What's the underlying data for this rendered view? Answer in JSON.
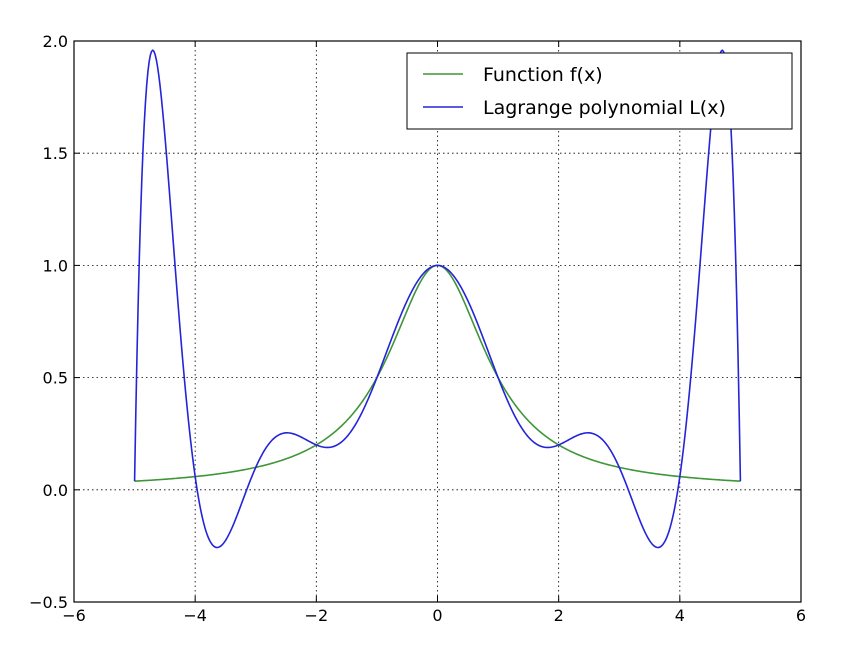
{
  "chart_data": {
    "type": "line",
    "title": "",
    "xlabel": "",
    "ylabel": "",
    "xlim": [
      -6,
      6
    ],
    "ylim": [
      -0.5,
      2.0
    ],
    "x_ticks": [
      -6,
      -4,
      -2,
      0,
      2,
      4,
      6
    ],
    "x_tick_labels": [
      "−6",
      "−4",
      "−2",
      "0",
      "2",
      "4",
      "6"
    ],
    "y_ticks": [
      -0.5,
      0.0,
      0.5,
      1.0,
      1.5,
      2.0
    ],
    "y_tick_labels": [
      "−0.5",
      "0.0",
      "0.5",
      "1.0",
      "1.5",
      "2.0"
    ],
    "grid": true,
    "legend_position": "top-right",
    "series": [
      {
        "name": "Function f(x)",
        "color": "#3f9638",
        "function": "1/(1+x^2)",
        "x_range": [
          -5,
          5
        ]
      },
      {
        "name": "Lagrange polynomial L(x)",
        "color": "#2424d9",
        "interpolation_nodes_x": [
          -5,
          -4,
          -3,
          -2,
          -1,
          0,
          1,
          2,
          3,
          4,
          5
        ],
        "interpolation_nodes_y": [
          0.0385,
          0.0588,
          0.1,
          0.2,
          0.5,
          1.0,
          0.5,
          0.2,
          0.1,
          0.0588,
          0.0385
        ],
        "x_range": [
          -5,
          5
        ]
      }
    ]
  }
}
